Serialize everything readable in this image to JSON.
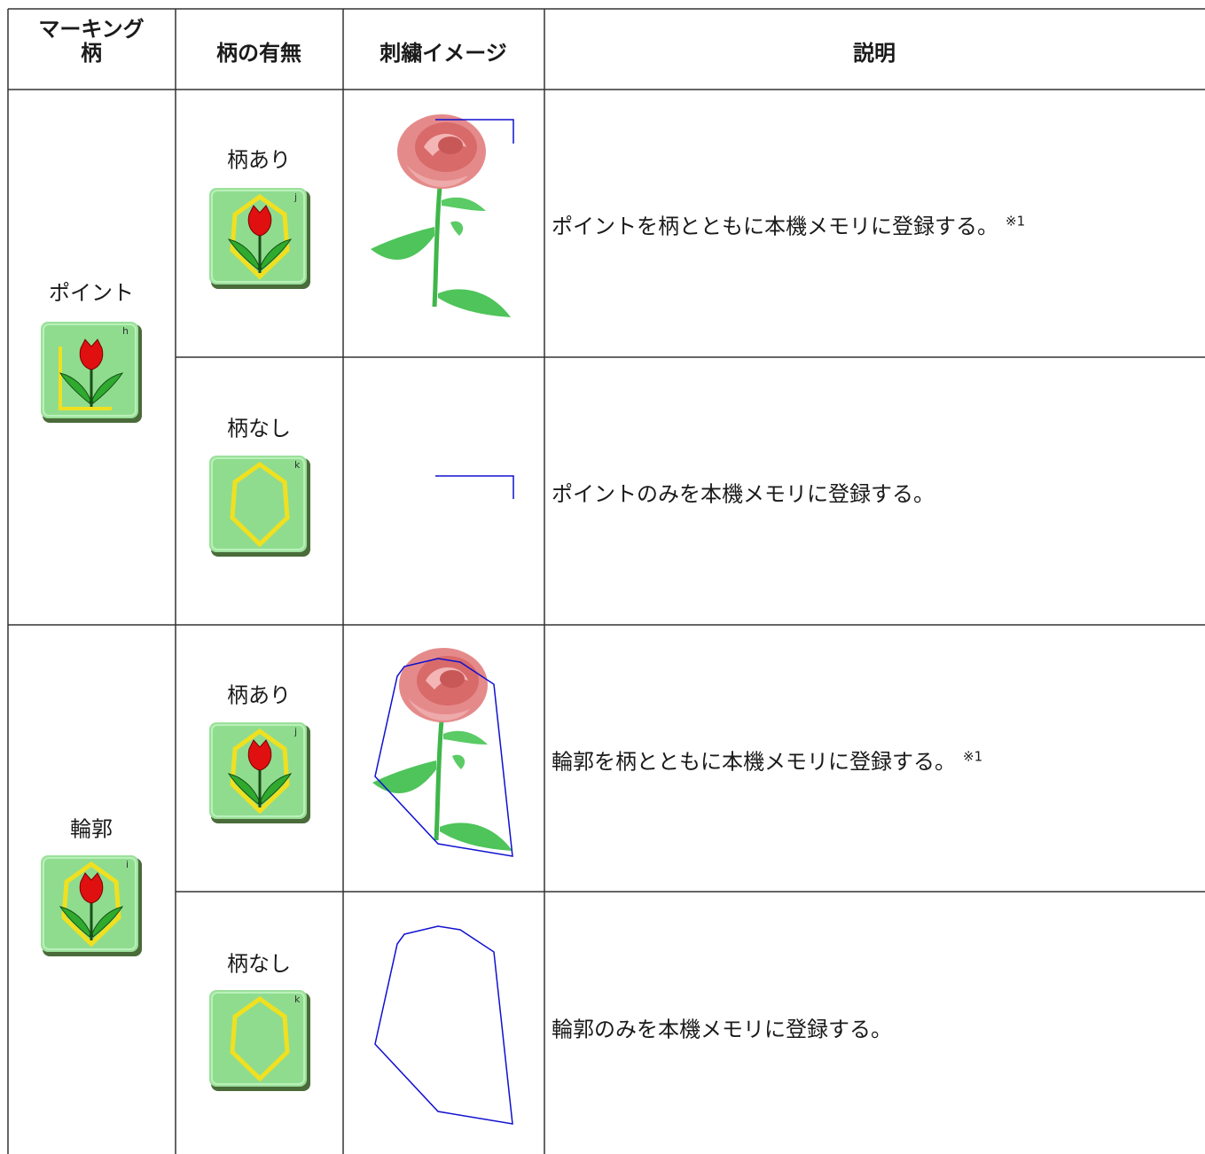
{
  "table": {
    "headers": [
      [
        "マーキング",
        "柄"
      ],
      [
        "柄の有無"
      ],
      [
        "刺繍イメージ"
      ],
      [
        "説明"
      ]
    ],
    "groups": [
      {
        "label": "ポイント",
        "icon": "h",
        "rows": [
          {
            "option": "柄あり",
            "icon": "j",
            "description": "ポイントを柄とともに本機メモリに登録する。",
            "note": "※1"
          },
          {
            "option": "柄なし",
            "icon": "k",
            "description": "ポイントのみを本機メモリに登録する。"
          }
        ]
      },
      {
        "label": "輪郭",
        "icon": "i",
        "rows": [
          {
            "option": "柄あり",
            "icon": "j",
            "description": "輪郭を柄とともに本機メモリに登録する。",
            "note": "※1"
          },
          {
            "option": "柄なし",
            "icon": "k",
            "description": "輪郭のみを本機メモリに登録する。"
          }
        ]
      }
    ]
  }
}
